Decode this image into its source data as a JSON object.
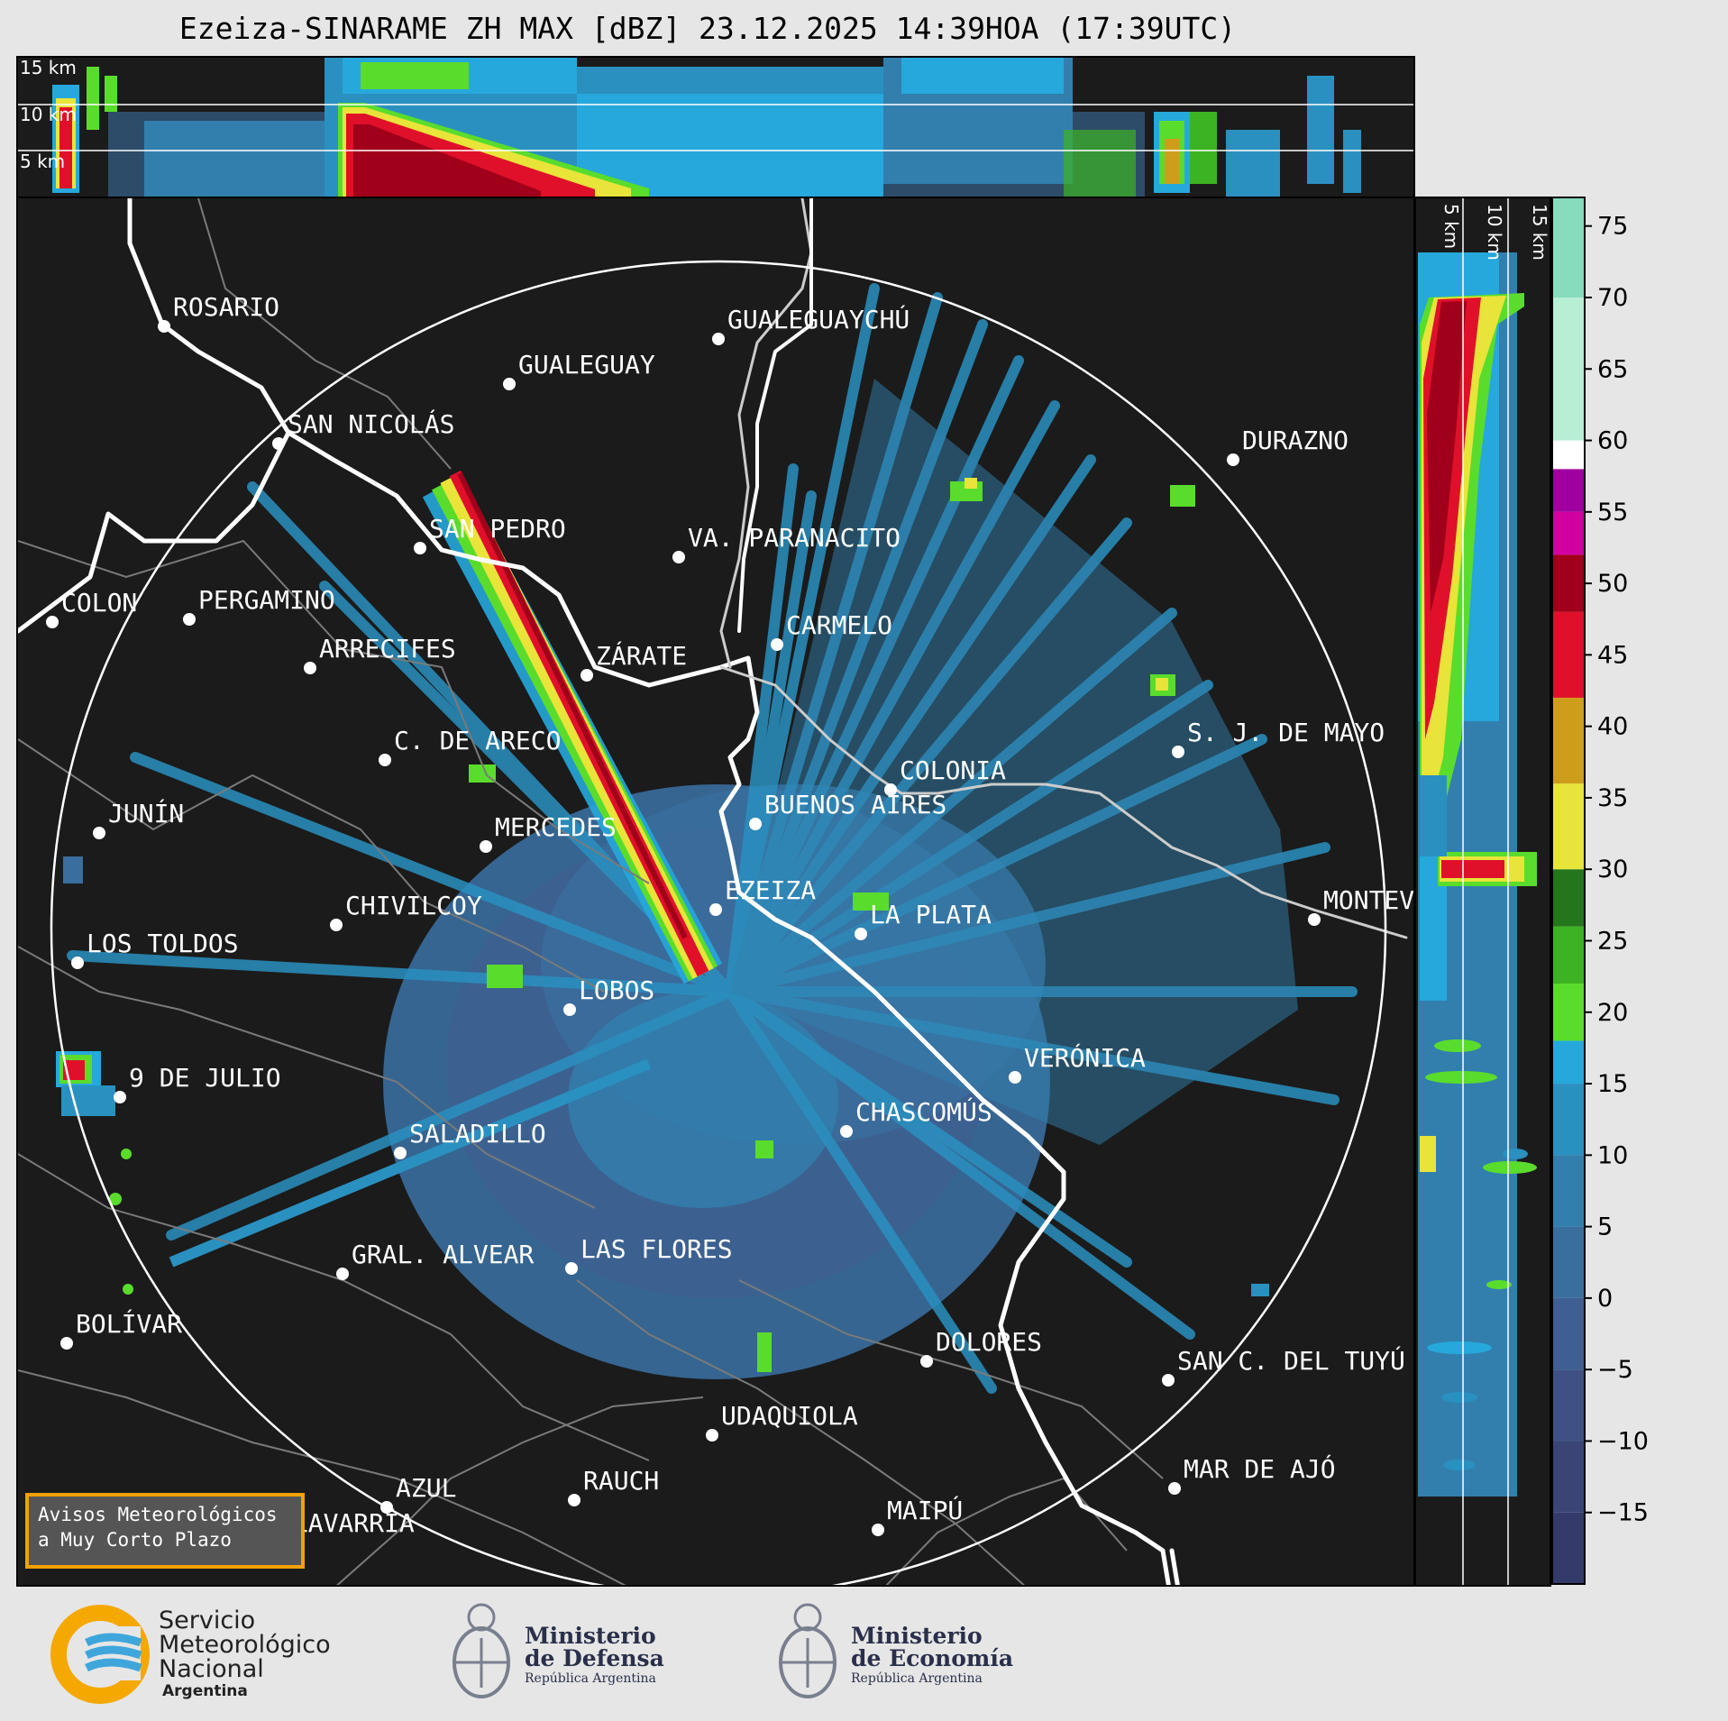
{
  "title": "Ezeiza-SINARAME ZH MAX [dBZ] 23.12.2025 14:39HOA (17:39UTC)",
  "top_profile": {
    "height_labels": [
      "15 km",
      "10 km",
      "5 km"
    ]
  },
  "side_profile": {
    "height_labels": [
      "5 km",
      "10 km",
      "15 km"
    ]
  },
  "colorbar": {
    "unit": "dBZ",
    "ticks": [
      "75",
      "70",
      "65",
      "60",
      "55",
      "50",
      "45",
      "40",
      "35",
      "30",
      "25",
      "20",
      "15",
      "10",
      "5",
      "0",
      "−5",
      "−10",
      "−15"
    ],
    "colors": [
      {
        "from": -20,
        "to": -15,
        "color": "#343a6a"
      },
      {
        "from": -15,
        "to": -10,
        "color": "#3a4576"
      },
      {
        "from": -10,
        "to": -5,
        "color": "#3f5184"
      },
      {
        "from": -5,
        "to": 0,
        "color": "#3f5f92"
      },
      {
        "from": 0,
        "to": 5,
        "color": "#3a6e9e"
      },
      {
        "from": 5,
        "to": 10,
        "color": "#327fae"
      },
      {
        "from": 10,
        "to": 15,
        "color": "#2a90c0"
      },
      {
        "from": 15,
        "to": 18,
        "color": "#26a8dc"
      },
      {
        "from": 18,
        "to": 22,
        "color": "#5adc2c"
      },
      {
        "from": 22,
        "to": 26,
        "color": "#3cb322"
      },
      {
        "from": 26,
        "to": 30,
        "color": "#24761c"
      },
      {
        "from": 30,
        "to": 36,
        "color": "#e8e43a"
      },
      {
        "from": 36,
        "to": 42,
        "color": "#cf9d1c"
      },
      {
        "from": 42,
        "to": 48,
        "color": "#e0102a"
      },
      {
        "from": 48,
        "to": 52,
        "color": "#a0001a"
      },
      {
        "from": 52,
        "to": 55,
        "color": "#d000a0"
      },
      {
        "from": 55,
        "to": 58,
        "color": "#a000a0"
      },
      {
        "from": 58,
        "to": 60,
        "color": "#ffffff"
      },
      {
        "from": 60,
        "to": 70,
        "color": "#b7eed4"
      },
      {
        "from": 70,
        "to": 77,
        "color": "#86dcbc"
      }
    ]
  },
  "cities": [
    {
      "name": "ROSARIO"
    },
    {
      "name": "GUALEGUAYCHÚ"
    },
    {
      "name": "GUALEGUAY"
    },
    {
      "name": "SAN NICOLÁS"
    },
    {
      "name": "DURAZNO"
    },
    {
      "name": "SAN PEDRO"
    },
    {
      "name": "VA. PARANACITO"
    },
    {
      "name": "COLON"
    },
    {
      "name": "PERGAMINO"
    },
    {
      "name": "CARMELO"
    },
    {
      "name": "ARRECIFES"
    },
    {
      "name": "ZÁRATE"
    },
    {
      "name": "S. J. DE MAYO"
    },
    {
      "name": "C. DE ARECO"
    },
    {
      "name": "COLONIA"
    },
    {
      "name": "JUNÍN"
    },
    {
      "name": "BUENOS AIRES"
    },
    {
      "name": "MERCEDES"
    },
    {
      "name": "MONTEVIDEO"
    },
    {
      "name": "EZEIZA"
    },
    {
      "name": "CHIVILCOY"
    },
    {
      "name": "LA PLATA"
    },
    {
      "name": "LOS TOLDOS"
    },
    {
      "name": "LOBOS"
    },
    {
      "name": "VERÓNICA"
    },
    {
      "name": "9 DE JULIO"
    },
    {
      "name": "CHASCOMÚS"
    },
    {
      "name": "SALADILLO"
    },
    {
      "name": "GRAL. ALVEAR"
    },
    {
      "name": "LAS FLORES"
    },
    {
      "name": "BOLÍVAR"
    },
    {
      "name": "DOLORES"
    },
    {
      "name": "SAN C. DEL TUYÚ"
    },
    {
      "name": "UDAQUIOLA"
    },
    {
      "name": "AZUL"
    },
    {
      "name": "RAUCH"
    },
    {
      "name": "MAR DE AJÓ"
    },
    {
      "name": "OLAVARRÍA"
    },
    {
      "name": "MAIPÚ"
    }
  ],
  "notice": {
    "line1": "Avisos Meteorológicos",
    "line2": "a Muy Corto Plazo"
  },
  "footer": {
    "smn": {
      "line1": "Servicio",
      "line2": "Meteorológico",
      "line3": "Nacional",
      "line4": "Argentina"
    },
    "defensa": {
      "line1": "Ministerio",
      "line2": "de Defensa",
      "line3": "República Argentina"
    },
    "economia": {
      "line1": "Ministerio",
      "line2": "de Economía",
      "line3": "República Argentina"
    }
  },
  "colors": {
    "background": "#e6e6e6",
    "map_bg": "#1b1b1b",
    "notice_border": "#f2a100"
  }
}
